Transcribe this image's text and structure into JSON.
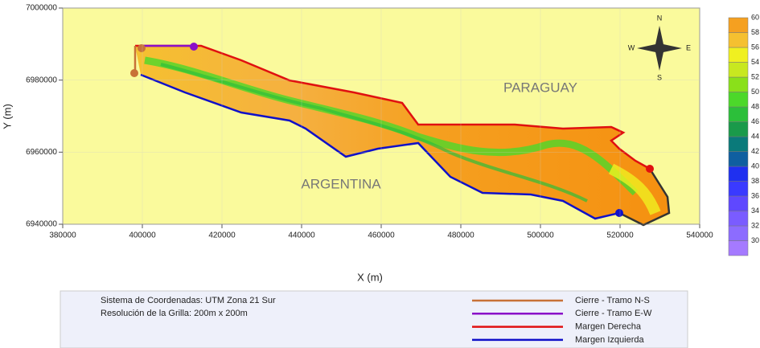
{
  "map": {
    "x_label": "X (m)",
    "y_label": "Y (m)",
    "xlim": [
      380000,
      540000
    ],
    "xticks": [
      380000,
      400000,
      420000,
      440000,
      460000,
      480000,
      500000,
      520000,
      540000
    ],
    "ylim": [
      6940000,
      7000000
    ],
    "yticks": [
      6940000,
      6960000,
      6980000,
      7000000
    ],
    "region_labels": [
      "PARAGUAY",
      "ARGENTINA"
    ],
    "compass": [
      "N",
      "S",
      "W",
      "E"
    ],
    "colorbar": {
      "ticks": [
        30,
        32,
        34,
        36,
        38,
        40,
        42,
        44,
        46,
        48,
        50,
        52,
        54,
        56,
        58,
        60
      ],
      "colors": [
        "#a57aff",
        "#8c6cff",
        "#7a5cff",
        "#5f48ff",
        "#3a3aff",
        "#1f30f0",
        "#0f5fa0",
        "#0a7a7a",
        "#1a9a4a",
        "#2cbf3a",
        "#4cd82a",
        "#8ae01a",
        "#c8e820",
        "#f0f020",
        "#f5c030",
        "#f5a020"
      ]
    }
  },
  "notes": [
    "Sistema de Coordenadas: UTM Zona 21 Sur",
    "Resolución de la Grilla: 200m x 200m"
  ],
  "legend": [
    {
      "name": "Cierre - Tramo N-S",
      "color": "#c87137"
    },
    {
      "name": "Cierre - Tramo E-W",
      "color": "#8a10c8"
    },
    {
      "name": "Margen Derecha",
      "color": "#e01010"
    },
    {
      "name": "Margen Izquierda",
      "color": "#1010c8"
    }
  ]
}
